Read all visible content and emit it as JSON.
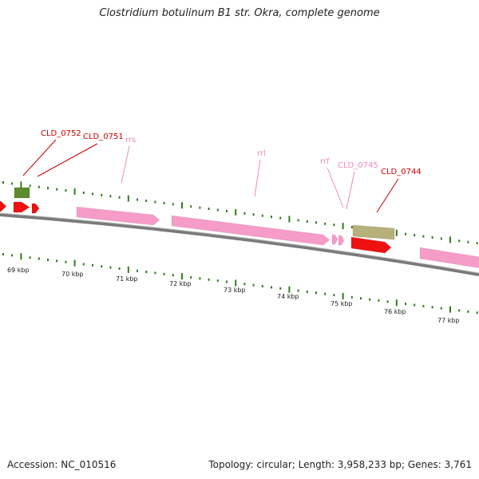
{
  "title": "Clostridium botulinum B1 str. Okra, complete genome",
  "footer": {
    "accession": "Accession: NC_010516",
    "summary": "Topology: circular; Length: 3,958,233 bp; Genes: 3,761"
  },
  "colors": {
    "cds": "#ee1111",
    "rrna": "#f59cc8",
    "green_gene": "#5c8a2c",
    "olive_gene": "#b7b07a",
    "label_red": "#cc0000",
    "label_pink": "#f08ab8",
    "tick_green": "#2e7d1a",
    "backbone": "#7a7a7a"
  },
  "gene_labels": [
    {
      "text": "CLD_0752",
      "kind": "cds"
    },
    {
      "text": "CLD_0751",
      "kind": "cds"
    },
    {
      "text": "rrs",
      "kind": "rrna"
    },
    {
      "text": "rrl",
      "kind": "rrna"
    },
    {
      "text": "rrf",
      "kind": "rrna"
    },
    {
      "text": "CLD_0745",
      "kind": "rrna"
    },
    {
      "text": "CLD_0744",
      "kind": "cds"
    }
  ],
  "kbp_labels": [
    "69 kbp",
    "70 kbp",
    "71 kbp",
    "72 kbp",
    "73 kbp",
    "74 kbp",
    "75 kbp",
    "76 kbp",
    "77 kbp"
  ]
}
